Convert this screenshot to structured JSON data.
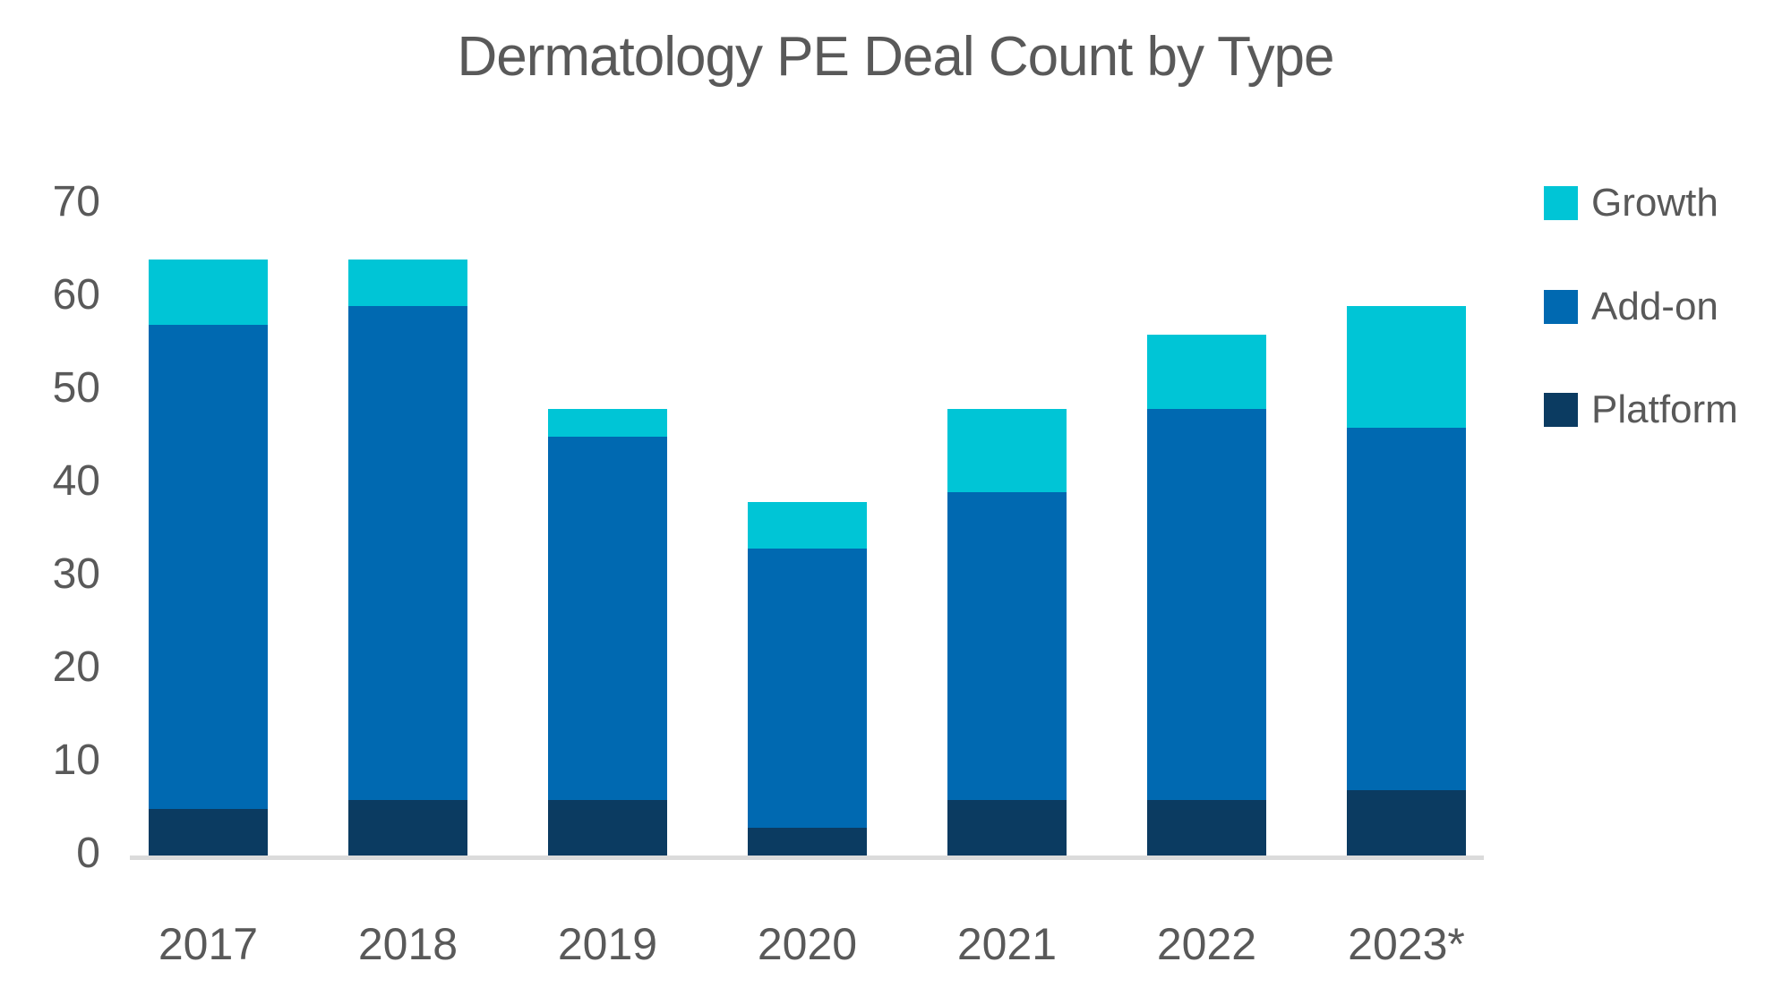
{
  "chart_data": {
    "type": "bar",
    "stacked": true,
    "title": "Dermatology PE Deal Count by Type",
    "categories": [
      "2017",
      "2018",
      "2019",
      "2020",
      "2021",
      "2022",
      "2023*"
    ],
    "series": [
      {
        "name": "Platform",
        "color": "#0B3B61",
        "values": [
          5,
          6,
          6,
          3,
          6,
          6,
          7
        ]
      },
      {
        "name": "Add-on",
        "color": "#0069B1",
        "values": [
          52,
          53,
          39,
          30,
          33,
          42,
          39
        ]
      },
      {
        "name": "Growth",
        "color": "#00C5D6",
        "values": [
          7,
          5,
          3,
          5,
          9,
          8,
          13
        ]
      }
    ],
    "totals": [
      64,
      64,
      48,
      38,
      48,
      56,
      59
    ],
    "legend": [
      {
        "label": "Growth",
        "color": "#00C5D6"
      },
      {
        "label": "Add-on",
        "color": "#0069B1"
      },
      {
        "label": "Platform",
        "color": "#0B3B61"
      }
    ],
    "yticks": [
      0,
      10,
      20,
      30,
      40,
      50,
      60,
      70
    ],
    "ylim": [
      0,
      70
    ],
    "grid": false,
    "legend_position": "right",
    "text_color": "#595959",
    "axis_line_color": "#DBDBDB"
  }
}
